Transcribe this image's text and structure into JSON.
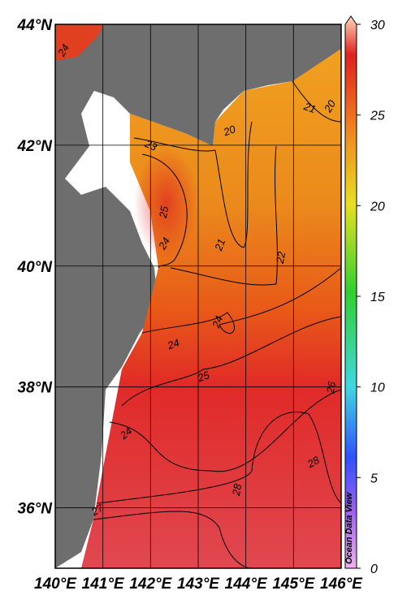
{
  "map": {
    "lon_range": [
      140,
      146
    ],
    "lat_range": [
      35,
      44
    ],
    "lon_ticks": [
      {
        "value": 140,
        "label": "140°E"
      },
      {
        "value": 141,
        "label": "141°E"
      },
      {
        "value": 142,
        "label": "142°E"
      },
      {
        "value": 143,
        "label": "143°E"
      },
      {
        "value": 144,
        "label": "144°E"
      },
      {
        "value": 145,
        "label": "145°E"
      },
      {
        "value": 146,
        "label": "146°E"
      }
    ],
    "lat_ticks": [
      {
        "value": 44,
        "label": "44°N"
      },
      {
        "value": 42,
        "label": "42°N"
      },
      {
        "value": 40,
        "label": "40°N"
      },
      {
        "value": 38,
        "label": "38°N"
      },
      {
        "value": 36,
        "label": "36°N"
      }
    ],
    "colorbar": {
      "range": [
        0,
        30
      ],
      "ticks": [
        0,
        5,
        10,
        15,
        20,
        25,
        30
      ]
    },
    "contour_labels": [
      "24",
      "23",
      "25",
      "24",
      "20",
      "21",
      "20",
      "21",
      "22",
      "24",
      "24",
      "25",
      "24",
      "26",
      "28",
      "28",
      "27"
    ],
    "watermark": "Ocean Data View"
  }
}
